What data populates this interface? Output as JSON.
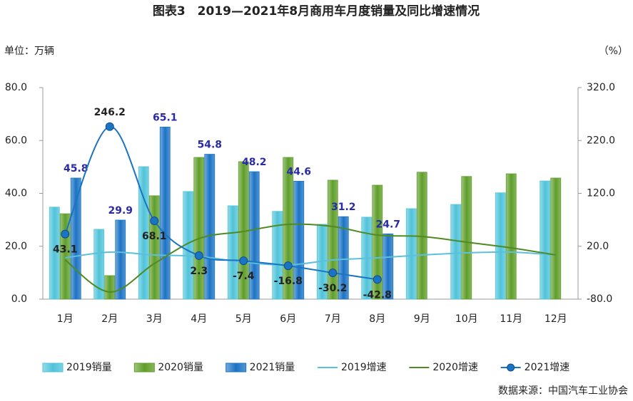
{
  "chart_data": {
    "type": "bar_line",
    "title": "图表3　2019—2021年8月商用车月度销量及同比增速情况",
    "y_unit": "单位：万辆",
    "y2_unit": "（%）",
    "source": "数据来源：中国汽车工业协会",
    "categories": [
      "1月",
      "2月",
      "3月",
      "4月",
      "5月",
      "6月",
      "7月",
      "8月",
      "9月",
      "10月",
      "11月",
      "12月"
    ],
    "ylim": [
      0,
      80
    ],
    "yticks": [
      {
        "value": 0,
        "label": "0.0"
      },
      {
        "value": 20,
        "label": "20.0"
      },
      {
        "value": 40,
        "label": "40.0"
      },
      {
        "value": 60,
        "label": "60.0"
      },
      {
        "value": 80,
        "label": "80.0"
      }
    ],
    "y2lim": [
      -80,
      320
    ],
    "y2ticks": [
      {
        "value": -80,
        "label": "-80.0"
      },
      {
        "value": 20,
        "label": "20.0"
      },
      {
        "value": 120,
        "label": "120.0"
      },
      {
        "value": 220,
        "label": "220.0"
      },
      {
        "value": 320,
        "label": "320.0"
      }
    ],
    "series": [
      {
        "name": "2019销量",
        "type": "bar",
        "color": "#4fc3d9",
        "values": [
          34.8,
          26.4,
          50.1,
          40.7,
          35.3,
          33.2,
          28.3,
          31.0,
          34.2,
          35.8,
          40.2,
          44.7
        ]
      },
      {
        "name": "2020销量",
        "type": "bar",
        "color": "#5f9e2a",
        "values": [
          32.3,
          8.9,
          39.1,
          53.6,
          52.0,
          53.6,
          45.0,
          43.1,
          48.0,
          46.4,
          47.4,
          45.8
        ]
      },
      {
        "name": "2021销量",
        "type": "bar",
        "color": "#1b73c4",
        "values": [
          45.8,
          29.9,
          65.1,
          54.8,
          48.2,
          44.6,
          31.2,
          24.7,
          null,
          null,
          null,
          null
        ],
        "labels": true
      },
      {
        "name": "2019增速",
        "type": "line",
        "axis": "y2",
        "color": "#5cc0dc",
        "values": [
          -1.9,
          8.9,
          3.5,
          0.8,
          -10,
          -15.3,
          -5.9,
          -1.9,
          3.5,
          7.5,
          8.9,
          3.5
        ]
      },
      {
        "name": "2020增速",
        "type": "line",
        "axis": "y2",
        "color": "#4f8a22",
        "values": [
          -5.9,
          -66.5,
          -12.7,
          34.5,
          48,
          61.4,
          57.4,
          41.2,
          38.5,
          27.8,
          17,
          3.5
        ]
      },
      {
        "name": "2021增速",
        "type": "line",
        "axis": "y2",
        "color": "#1b73c4",
        "marker": true,
        "labels": true,
        "values": [
          43.1,
          246.2,
          68.1,
          2.3,
          -7.4,
          -16.8,
          -30.2,
          -42.8,
          null,
          null,
          null,
          null
        ]
      }
    ]
  }
}
